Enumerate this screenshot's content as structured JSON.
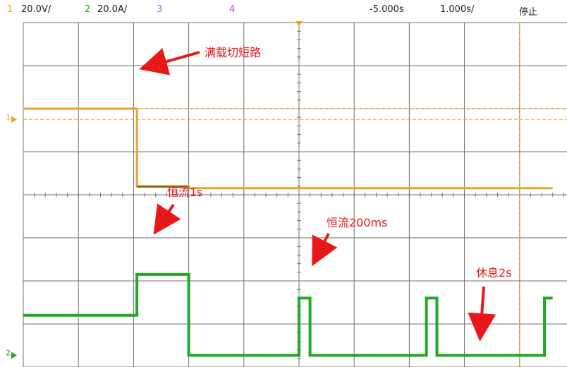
{
  "status": {
    "ch1_num": "1",
    "ch1_scale": "20.0V/",
    "ch2_num": "2",
    "ch2_scale": "20.0A/",
    "ch3_num": "3",
    "ch4_num": "4",
    "time_offset": "-5.000s",
    "time_scale": "1.000s/",
    "run_state": "停止"
  },
  "colors": {
    "ch1": "#f0a020",
    "ch2": "#22a822",
    "ch3": "#6a82d8",
    "ch4": "#c040c0",
    "grid": "#707070",
    "annotation": "#e81818",
    "ch1_dark": "#7a5010"
  },
  "chart_data": {
    "type": "line",
    "x_unit": "div",
    "series": [
      {
        "channel": 1,
        "values_div": [
          [
            0,
            6.0
          ],
          [
            2.06,
            6.0
          ],
          [
            2.06,
            4.2
          ],
          [
            3.0,
            4.2
          ],
          [
            3.0,
            4.15
          ],
          [
            9.6,
            4.15
          ]
        ]
      },
      {
        "channel": 2,
        "values_div": [
          [
            0,
            1.2
          ],
          [
            2.06,
            1.2
          ],
          [
            2.06,
            2.15
          ],
          [
            3.0,
            2.15
          ],
          [
            3.0,
            0.27
          ],
          [
            5.0,
            0.27
          ],
          [
            5.0,
            1.6
          ],
          [
            5.2,
            1.6
          ],
          [
            5.2,
            0.27
          ],
          [
            7.31,
            0.27
          ],
          [
            7.31,
            1.6
          ],
          [
            7.5,
            1.6
          ],
          [
            7.5,
            0.27
          ],
          [
            9.45,
            0.27
          ],
          [
            9.45,
            1.6
          ],
          [
            9.6,
            1.6
          ]
        ]
      }
    ],
    "ground_markers": [
      "1",
      "2"
    ],
    "annotations": [
      {
        "text": "满载切短路"
      },
      {
        "text": "恒流1s"
      },
      {
        "text": "恒流200ms"
      },
      {
        "text": "休息2s"
      }
    ]
  }
}
